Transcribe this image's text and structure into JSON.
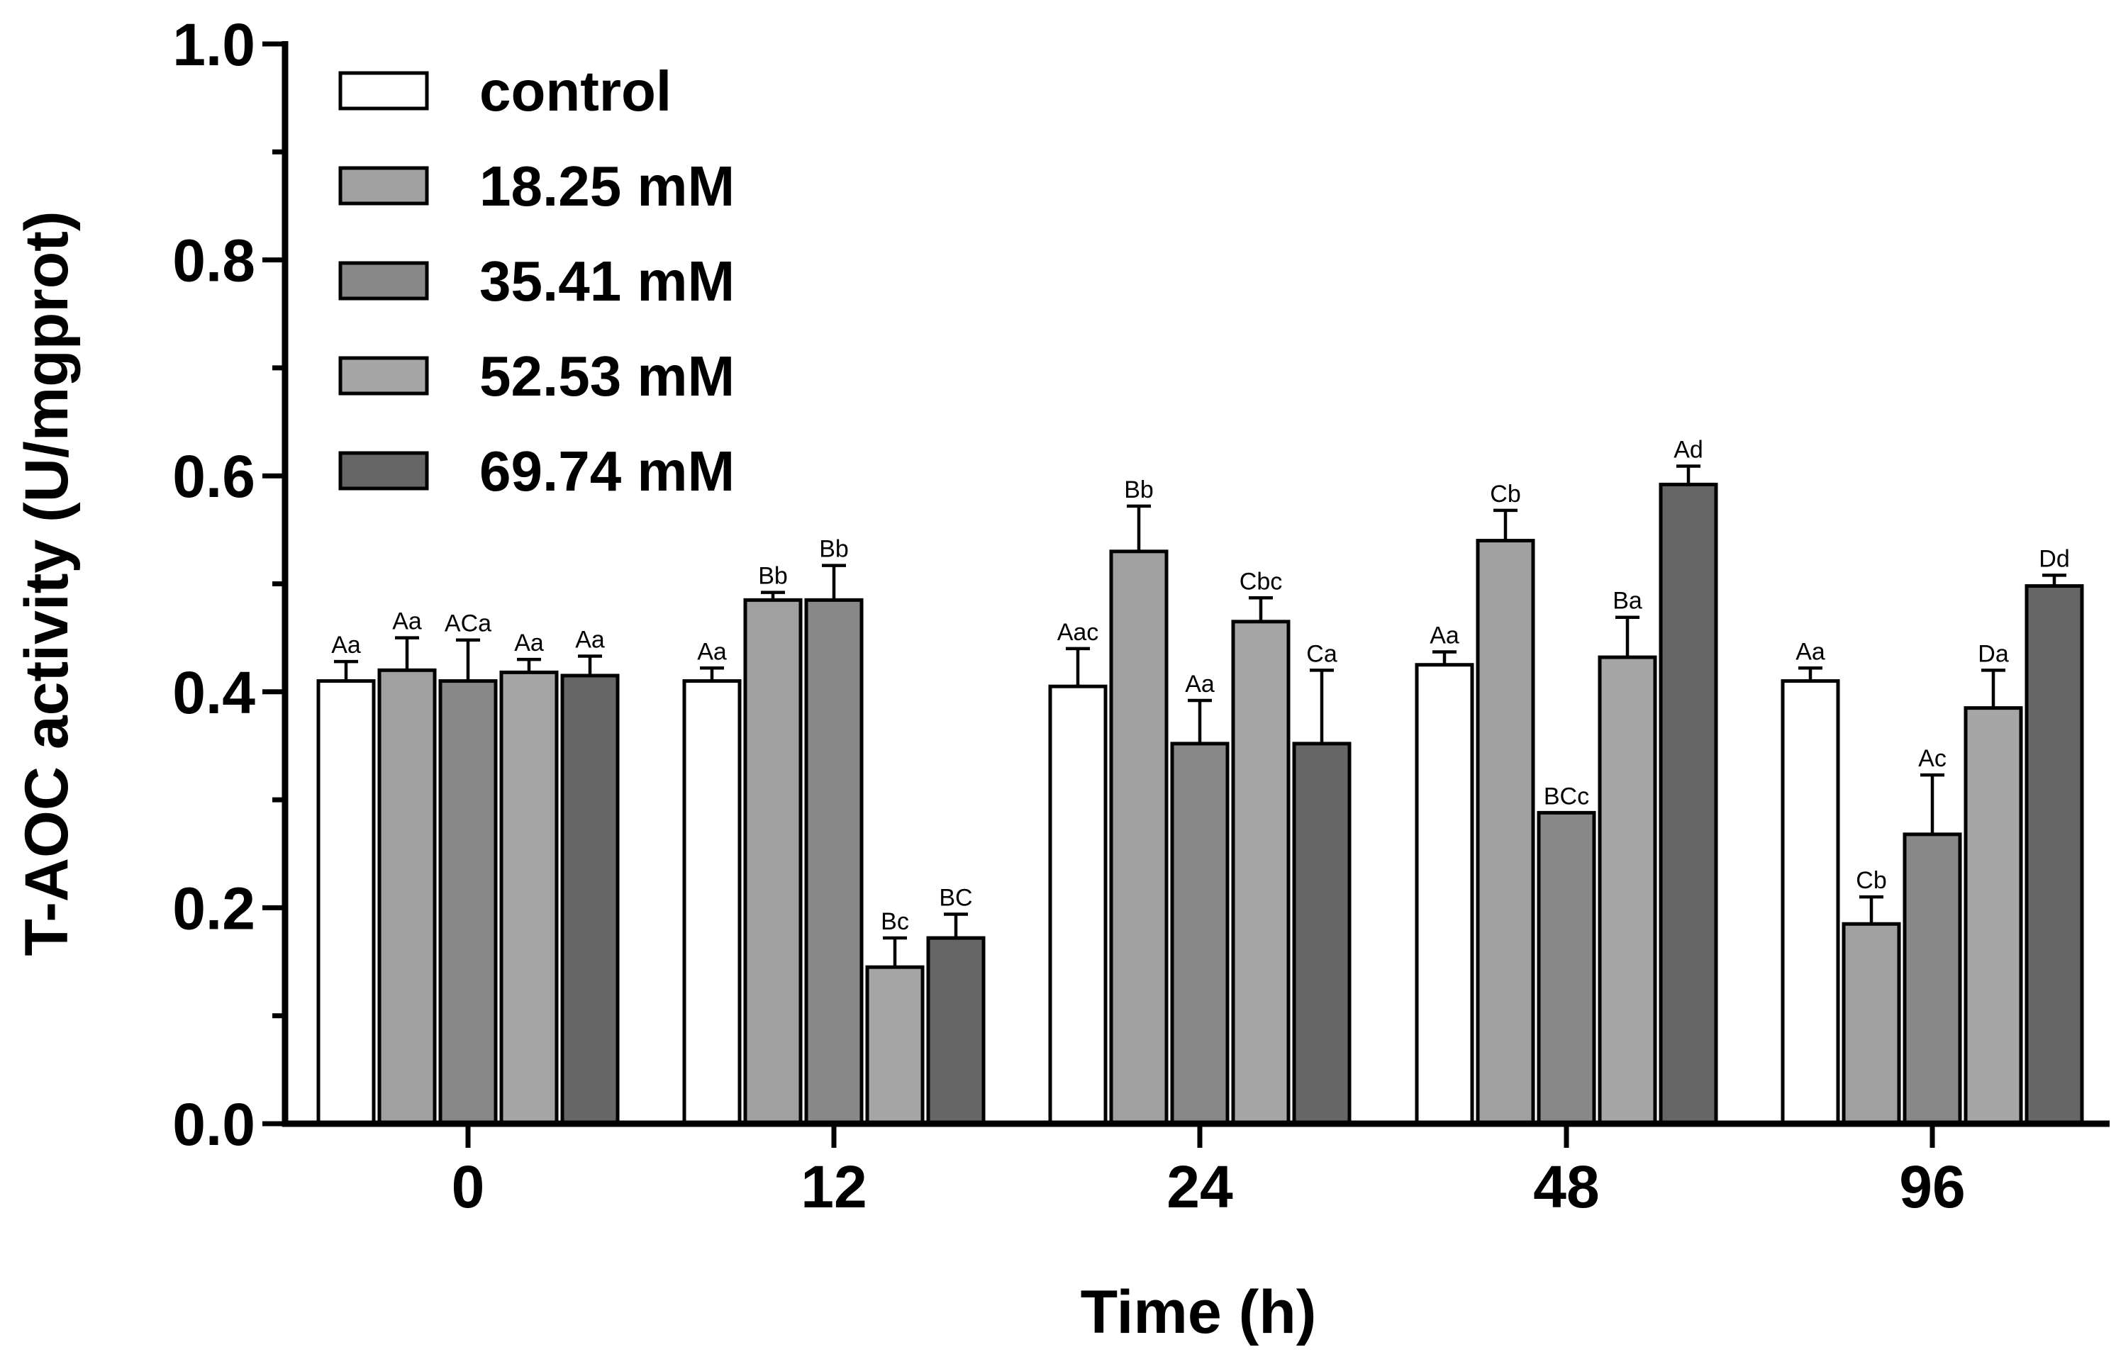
{
  "chart_data": {
    "type": "bar",
    "title": "",
    "xlabel": "Time (h)",
    "ylabel": "T-AOC activity (U/mgprot)",
    "ylim": [
      0,
      1.0
    ],
    "yticks": [
      "0.0",
      "0.2",
      "0.4",
      "0.6",
      "0.8",
      "1.0"
    ],
    "categories": [
      "0",
      "12",
      "24",
      "48",
      "96"
    ],
    "legend_position": "top-left",
    "grid": false,
    "series": [
      {
        "name": "control",
        "color": "#ffffff",
        "values": [
          0.41,
          0.41,
          0.405,
          0.425,
          0.41
        ],
        "errors": [
          0.018,
          0.012,
          0.035,
          0.012,
          0.012
        ],
        "labels": [
          "Aa",
          "Aa",
          "Aac",
          "Aa",
          "Aa"
        ]
      },
      {
        "name": "18.25 mM",
        "color": "#a0a0a0",
        "values": [
          0.42,
          0.485,
          0.53,
          0.54,
          0.185
        ],
        "errors": [
          0.03,
          0.007,
          0.042,
          0.028,
          0.025
        ],
        "labels": [
          "Aa",
          "Bb",
          "Bb",
          "Cb",
          "Cb"
        ]
      },
      {
        "name": "35.41 mM",
        "color": "#888888",
        "values": [
          0.41,
          0.485,
          0.352,
          0.288,
          0.268
        ],
        "errors": [
          0.038,
          0.032,
          0.04,
          0.0,
          0.055
        ],
        "labels": [
          "ACa",
          "Bb",
          "Aa",
          "BCc",
          "Ac"
        ]
      },
      {
        "name": "52.53 mM",
        "color": "#a6a6a6",
        "values": [
          0.418,
          0.145,
          0.465,
          0.432,
          0.385
        ],
        "errors": [
          0.012,
          0.027,
          0.022,
          0.037,
          0.035
        ],
        "labels": [
          "Aa",
          "Bc",
          "Cbc",
          "Ba",
          "Da"
        ]
      },
      {
        "name": "69.74 mM",
        "color": "#666666",
        "values": [
          0.415,
          0.172,
          0.352,
          0.592,
          0.498
        ],
        "errors": [
          0.018,
          0.022,
          0.068,
          0.017,
          0.01
        ],
        "labels": [
          "Aa",
          "BC",
          "Ca",
          "Ad",
          "Dd"
        ]
      }
    ]
  }
}
